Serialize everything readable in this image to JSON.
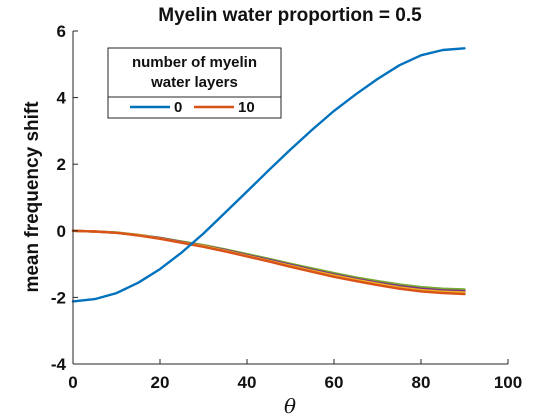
{
  "chart_data": {
    "type": "line",
    "title": "Myelin water proportion = 0.5",
    "xlabel": "θ",
    "ylabel": "mean frequency shift",
    "xlim": [
      0,
      100
    ],
    "ylim": [
      -4,
      6
    ],
    "xticks": [
      0,
      20,
      40,
      60,
      80,
      100
    ],
    "yticks": [
      -4,
      -2,
      0,
      2,
      4,
      6
    ],
    "grid": false,
    "legend": {
      "title": "number of myelin water layers",
      "title_lines": [
        "number of myelin",
        "water layers"
      ],
      "placement": "top-left",
      "entries": [
        "0",
        "10"
      ]
    },
    "x": [
      0,
      5,
      10,
      15,
      20,
      25,
      30,
      35,
      40,
      45,
      50,
      55,
      60,
      65,
      70,
      75,
      80,
      85,
      90
    ],
    "series": [
      {
        "name": "0",
        "color": "#0072BD",
        "values": [
          -2.12,
          -2.05,
          -1.87,
          -1.56,
          -1.15,
          -0.65,
          -0.08,
          0.55,
          1.18,
          1.82,
          2.44,
          3.04,
          3.6,
          4.1,
          4.56,
          4.97,
          5.27,
          5.43,
          5.48
        ]
      },
      {
        "name": "10",
        "color": "#D95319",
        "values": [
          0.0,
          -0.02,
          -0.06,
          -0.14,
          -0.24,
          -0.36,
          -0.48,
          -0.62,
          -0.77,
          -0.92,
          -1.08,
          -1.23,
          -1.38,
          -1.51,
          -1.63,
          -1.74,
          -1.82,
          -1.87,
          -1.9
        ]
      },
      {
        "color": "#EDB120",
        "values": [
          0.0,
          -0.02,
          -0.06,
          -0.13,
          -0.23,
          -0.35,
          -0.46,
          -0.6,
          -0.75,
          -0.9,
          -1.05,
          -1.2,
          -1.34,
          -1.47,
          -1.59,
          -1.7,
          -1.78,
          -1.83,
          -1.85
        ]
      },
      {
        "color": "#7E2F8E",
        "values": [
          0.0,
          -0.02,
          -0.06,
          -0.13,
          -0.22,
          -0.34,
          -0.45,
          -0.58,
          -0.73,
          -0.87,
          -1.02,
          -1.17,
          -1.31,
          -1.44,
          -1.56,
          -1.66,
          -1.74,
          -1.79,
          -1.81
        ]
      },
      {
        "color": "#77AC30",
        "values": [
          0.0,
          -0.02,
          -0.05,
          -0.12,
          -0.21,
          -0.32,
          -0.43,
          -0.56,
          -0.7,
          -0.84,
          -0.99,
          -1.13,
          -1.27,
          -1.4,
          -1.51,
          -1.61,
          -1.69,
          -1.74,
          -1.76
        ]
      }
    ]
  }
}
